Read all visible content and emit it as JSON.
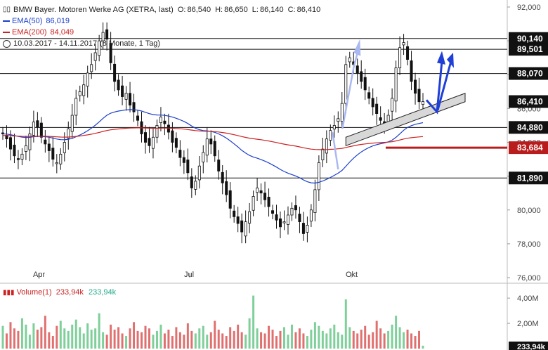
{
  "header": {
    "title": "BMW Bayer. Motoren Werke AG (XETRA, last)",
    "ohlc": [
      {
        "label": "O:",
        "value": "86,540"
      },
      {
        "label": "H:",
        "value": "86,650"
      },
      {
        "label": "L:",
        "value": "86,140"
      },
      {
        "label": "C:",
        "value": "86,410"
      }
    ],
    "ema50": {
      "label": "EMA(50)",
      "value": "86,019",
      "color": "#1a3fcc"
    },
    "ema200": {
      "label": "EMA(200)",
      "value": "84,049",
      "color": "#cc2222"
    },
    "range_label": "10.03.2017 - 14.11.2017",
    "range_detail": "(8 Monate, 1 Tag)"
  },
  "chart_data": {
    "type": "candlestick",
    "y_axis_ticks": [
      "92,000",
      "90,000",
      "88,000",
      "86,000",
      "84,000",
      "82,000",
      "80,000",
      "78,000",
      "76,000"
    ],
    "ylim": [
      76,
      92
    ],
    "x_axis_labels": [
      "Apr",
      "Jul",
      "Okt"
    ],
    "horizontal_levels": [
      {
        "value": 90.14,
        "label": "90,140"
      },
      {
        "value": 89.501,
        "label": "89,501"
      },
      {
        "value": 88.07,
        "label": "88,070"
      },
      {
        "value": 84.88,
        "label": "84,880"
      },
      {
        "value": 81.89,
        "label": "81,890"
      }
    ],
    "current_price": {
      "value": 86.41,
      "label": "86,410"
    },
    "ema200_marker": {
      "value": 83.684,
      "label": "83,684",
      "color": "#b81c1c"
    },
    "candles_close_approx": [
      84.5,
      84.2,
      83.6,
      83.2,
      83.0,
      83.3,
      83.8,
      84.5,
      85.2,
      84.9,
      84.3,
      83.9,
      83.5,
      83.0,
      82.8,
      83.3,
      84.0,
      84.8,
      85.6,
      86.6,
      87.0,
      87.4,
      88.1,
      88.6,
      89.3,
      90.0,
      90.5,
      90.1,
      88.7,
      87.6,
      87.1,
      86.7,
      86.9,
      86.2,
      85.8,
      85.3,
      84.5,
      84.0,
      83.8,
      84.3,
      85.0,
      85.5,
      85.1,
      84.6,
      84.0,
      83.7,
      83.1,
      82.8,
      82.2,
      81.3,
      81.7,
      82.6,
      83.4,
      84.2,
      83.9,
      83.2,
      82.3,
      81.6,
      80.9,
      80.1,
      79.6,
      79.2,
      78.7,
      79.3,
      79.9,
      80.8,
      81.3,
      81.0,
      80.6,
      80.2,
      79.8,
      79.4,
      79.0,
      79.3,
      79.7,
      80.1,
      80.0,
      79.3,
      78.6,
      79.1,
      80.0,
      81.2,
      82.8,
      83.6,
      84.2,
      84.7,
      85.0,
      85.4,
      86.3,
      88.6,
      89.0,
      88.6,
      88.1,
      87.6,
      87.1,
      86.6,
      86.1,
      85.7,
      85.3,
      85.1,
      85.6,
      86.6,
      88.4,
      89.6,
      89.9,
      88.9,
      87.6,
      86.9,
      86.4,
      86.41
    ],
    "volume": {
      "label": "Volume(1)",
      "value1": "233,94k",
      "value2": "233,94k",
      "current_label": "233,94k",
      "ticks": [
        "4,00M",
        "2,00M"
      ],
      "ylim": [
        0,
        4.9
      ],
      "bars_millions_approx": [
        1.8,
        1.2,
        2.1,
        1.6,
        1.4,
        2.4,
        1.9,
        1.1,
        2.0,
        1.5,
        1.7,
        2.6,
        1.3,
        1.0,
        1.8,
        2.2,
        1.6,
        1.4,
        1.9,
        2.3,
        1.7,
        1.2,
        2.0,
        1.5,
        1.6,
        2.8,
        1.3,
        1.1,
        1.9,
        1.5,
        1.7,
        1.2,
        1.0,
        1.6,
        2.1,
        1.4,
        1.3,
        1.8,
        1.6,
        1.1,
        1.4,
        1.9,
        1.2,
        1.5,
        1.0,
        1.7,
        1.3,
        1.1,
        2.0,
        1.4,
        1.2,
        1.6,
        1.8,
        1.1,
        1.3,
        2.2,
        1.5,
        1.2,
        1.0,
        1.7,
        1.4,
        1.9,
        1.3,
        1.1,
        2.4,
        4.2,
        1.6,
        1.3,
        1.2,
        1.8,
        1.5,
        1.0,
        1.4,
        1.7,
        1.1,
        1.9,
        1.3,
        1.6,
        1.2,
        1.0,
        1.5,
        2.1,
        1.8,
        1.4,
        1.2,
        1.6,
        1.9,
        1.3,
        1.1,
        3.9,
        1.7,
        1.4,
        1.2,
        1.5,
        1.8,
        1.1,
        1.3,
        2.2,
        1.6,
        1.2,
        1.4,
        1.9,
        2.6,
        1.7,
        1.3,
        1.5,
        1.2,
        1.0,
        1.4,
        0.23
      ]
    }
  }
}
